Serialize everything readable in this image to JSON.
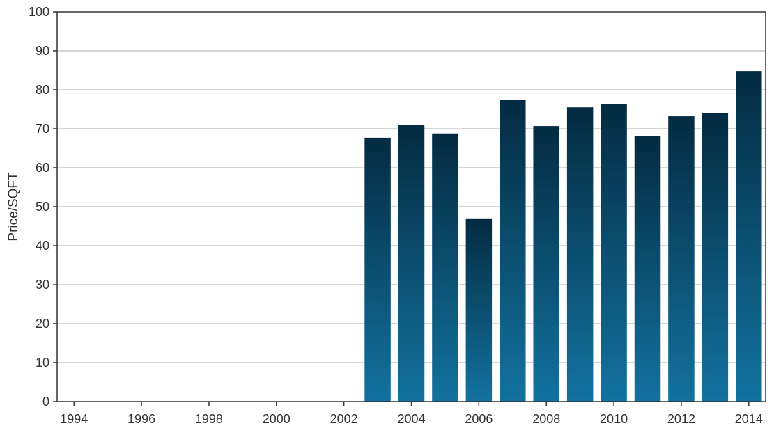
{
  "chart_data": {
    "type": "bar",
    "title": "",
    "xlabel": "",
    "ylabel": "Price/SQFT",
    "ylim": [
      0,
      100
    ],
    "xlim": [
      1993.5,
      2014.5
    ],
    "yticks": [
      0,
      10,
      20,
      30,
      40,
      50,
      60,
      70,
      80,
      90,
      100
    ],
    "xticks": [
      1994,
      1996,
      1998,
      2000,
      2002,
      2004,
      2006,
      2008,
      2010,
      2012,
      2014
    ],
    "categories": [
      2003,
      2004,
      2005,
      2006,
      2007,
      2008,
      2009,
      2010,
      2011,
      2012,
      2013,
      2014
    ],
    "values": [
      67.7,
      71.0,
      68.8,
      47.0,
      77.4,
      70.7,
      75.5,
      76.3,
      68.1,
      73.2,
      74.0,
      84.8
    ],
    "grid": "horizontal",
    "colors": {
      "bar_top": "#042b41",
      "bar_bottom": "#13729f",
      "grid": "#c8c8c8",
      "axis": "#333333"
    }
  }
}
